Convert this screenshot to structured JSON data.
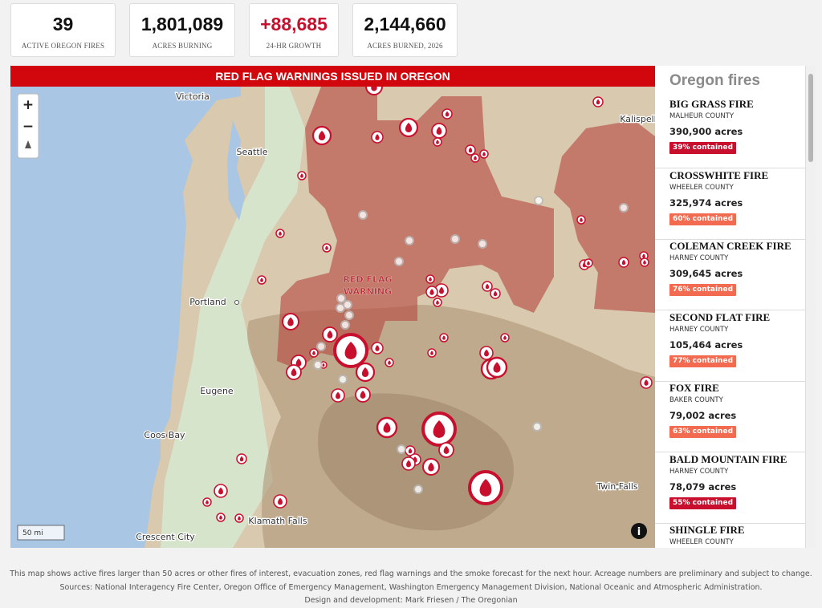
{
  "stats": [
    {
      "value": "39",
      "label": "ACTIVE OREGON FIRES"
    },
    {
      "value": "1,801,089",
      "label": "ACRES BURNING"
    },
    {
      "value": "+88,685",
      "label": "24-HR GROWTH"
    },
    {
      "value": "2,144,660",
      "label": "ACRES BURNED, 2026"
    }
  ],
  "banner": "RED FLAG WARNINGS ISSUED IN OREGON",
  "map": {
    "places": [
      "Victoria",
      "Seattle",
      "Kalispell",
      "Portland",
      "Eugene",
      "Coos Bay",
      "Twin Falls",
      "Klamath Falls",
      "Crescent City"
    ],
    "red_flag_label": [
      "RED FLAG",
      "WARNING"
    ],
    "scale": "50 mi",
    "controls": [
      "+",
      "−"
    ],
    "info": "i"
  },
  "sidebar": {
    "title": "Oregon fires",
    "fires": [
      {
        "name": "BIG GRASS FIRE",
        "county": "MALHEUR COUNTY",
        "acres": "390,900 acres",
        "contained": "39% contained",
        "badge_color": "#c8102e"
      },
      {
        "name": "CROSSWHITE FIRE",
        "county": "WHEELER COUNTY",
        "acres": "325,974 acres",
        "contained": "60% contained",
        "badge_color": "#f26a4f"
      },
      {
        "name": "COLEMAN CREEK FIRE",
        "county": "HARNEY COUNTY",
        "acres": "309,645 acres",
        "contained": "76% contained",
        "badge_color": "#f26a4f"
      },
      {
        "name": "SECOND FLAT FIRE",
        "county": "HARNEY COUNTY",
        "acres": "105,464 acres",
        "contained": "77% contained",
        "badge_color": "#f26a4f"
      },
      {
        "name": "FOX FIRE",
        "county": "BAKER COUNTY",
        "acres": "79,002 acres",
        "contained": "63% contained",
        "badge_color": "#f26a4f"
      },
      {
        "name": "BALD MOUNTAIN FIRE",
        "county": "HARNEY COUNTY",
        "acres": "78,079 acres",
        "contained": "55% contained",
        "badge_color": "#c8102e"
      },
      {
        "name": "SHINGLE FIRE",
        "county": "WHEELER COUNTY"
      }
    ]
  },
  "footer": [
    "This map shows active fires larger than 50 acres or other fires of interest, evacuation zones, red flag warnings and the smoke forecast for the next hour. Acreage numbers are preliminary and subject to change.",
    "Sources: National Interagency Fire Center, Oregon Office of Emergency Management, Washington Emergency Management Division, National Oceanic and Atmospheric Administration.",
    "Design and development: Mark Friesen / The Oregonian"
  ]
}
